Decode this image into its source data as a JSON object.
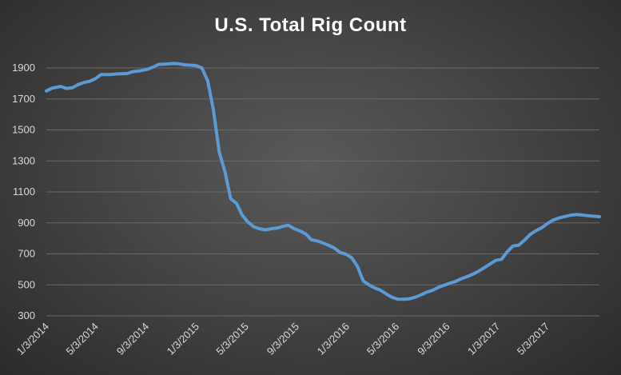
{
  "chart_data": {
    "type": "line",
    "title": "U.S. Total Rig Count",
    "xlabel": "",
    "ylabel": "",
    "ylim": [
      300,
      1900
    ],
    "yticks": [
      300,
      500,
      700,
      900,
      1100,
      1300,
      1500,
      1700,
      1900
    ],
    "xticks": [
      "1/3/2014",
      "5/3/2014",
      "9/3/2014",
      "1/3/2015",
      "5/3/2015",
      "9/3/2015",
      "1/3/2016",
      "5/3/2016",
      "9/3/2016",
      "1/3/2017",
      "5/3/2017"
    ],
    "grid": true,
    "legend": "none",
    "series_color": "#5b9bd5",
    "series": [
      {
        "x": [
          "2014-01-03",
          "2014-01-17",
          "2014-02-07",
          "2014-02-21",
          "2014-03-07",
          "2014-03-21",
          "2014-04-04",
          "2014-04-18",
          "2014-05-02",
          "2014-05-16",
          "2014-06-06",
          "2014-06-20",
          "2014-07-04",
          "2014-07-18",
          "2014-08-01",
          "2014-08-15",
          "2014-09-05",
          "2014-09-19",
          "2014-10-03",
          "2014-10-17",
          "2014-11-07",
          "2014-11-21",
          "2014-12-05",
          "2014-12-19",
          "2015-01-02",
          "2015-01-16",
          "2015-01-30",
          "2015-02-13",
          "2015-02-27",
          "2015-03-13",
          "2015-03-27",
          "2015-04-10",
          "2015-04-24",
          "2015-05-08",
          "2015-05-22",
          "2015-06-05",
          "2015-06-19",
          "2015-07-03",
          "2015-07-17",
          "2015-07-31",
          "2015-08-14",
          "2015-08-28",
          "2015-09-11",
          "2015-09-25",
          "2015-10-09",
          "2015-10-23",
          "2015-11-06",
          "2015-11-20",
          "2015-12-04",
          "2015-12-18",
          "2016-01-01",
          "2016-01-15",
          "2016-01-29",
          "2016-02-12",
          "2016-02-26",
          "2016-03-11",
          "2016-03-25",
          "2016-04-08",
          "2016-04-22",
          "2016-05-06",
          "2016-05-20",
          "2016-06-03",
          "2016-06-17",
          "2016-07-01",
          "2016-07-15",
          "2016-07-29",
          "2016-08-12",
          "2016-08-26",
          "2016-09-09",
          "2016-09-23",
          "2016-10-07",
          "2016-10-21",
          "2016-11-04",
          "2016-11-18",
          "2016-12-02",
          "2016-12-16",
          "2016-12-30",
          "2017-01-13",
          "2017-01-27",
          "2017-02-10",
          "2017-02-24",
          "2017-03-10",
          "2017-03-24",
          "2017-04-07",
          "2017-04-21",
          "2017-05-05",
          "2017-05-19",
          "2017-06-02",
          "2017-06-16",
          "2017-06-30",
          "2017-07-14",
          "2017-07-28",
          "2017-08-11",
          "2017-08-25",
          "2017-09-08"
        ],
        "values": [
          1752,
          1770,
          1781,
          1768,
          1772,
          1792,
          1806,
          1814,
          1831,
          1857,
          1857,
          1861,
          1863,
          1864,
          1876,
          1880,
          1891,
          1905,
          1923,
          1925,
          1929,
          1927,
          1920,
          1918,
          1915,
          1900,
          1818,
          1630,
          1358,
          1230,
          1055,
          1026,
          950,
          905,
          875,
          862,
          855,
          862,
          866,
          877,
          885,
          863,
          848,
          829,
          791,
          784,
          770,
          755,
          737,
          709,
          698,
          675,
          618,
          525,
          500,
          480,
          465,
          441,
          420,
          408,
          407,
          410,
          420,
          435,
          453,
          464,
          483,
          497,
          510,
          522,
          539,
          553,
          568,
          588,
          610,
          634,
          658,
          665,
          714,
          751,
          756,
          789,
          826,
          850,
          869,
          896,
          919,
          932,
          941,
          950,
          954,
          951,
          946,
          943,
          940
        ]
      }
    ]
  }
}
